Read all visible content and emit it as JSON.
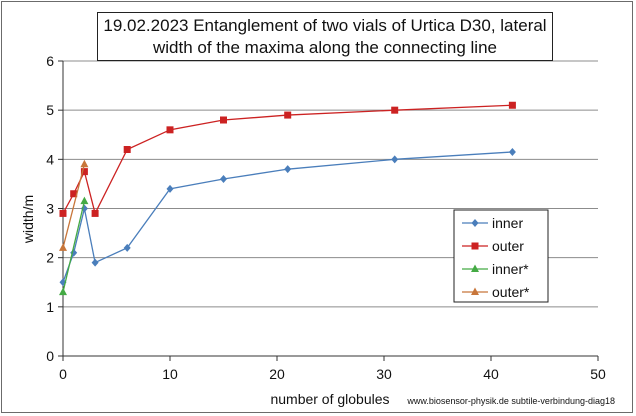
{
  "chart_data": {
    "type": "line",
    "title_lines": [
      "19.02.2023 Entanglement of two vials of Urtica D30, lateral",
      "width of the maxima along the connecting line"
    ],
    "xlabel": "number of globules",
    "ylabel": "width/m",
    "xlim": [
      0,
      50
    ],
    "ylim": [
      0,
      6
    ],
    "x_ticks": [
      "0",
      "10",
      "20",
      "30",
      "40",
      "50"
    ],
    "y_ticks": [
      "0",
      "1",
      "2",
      "3",
      "4",
      "5",
      "6"
    ],
    "grid": "horizontal",
    "legend_position": "right-middle",
    "credit": "www.biosensor-physik.de subtile-verbindung-diag18",
    "series": [
      {
        "name": "inner",
        "color": "#4a7ebb",
        "marker": "diamond",
        "x": [
          0,
          1,
          2,
          3,
          6,
          10,
          15,
          21,
          31,
          42
        ],
        "y": [
          1.5,
          2.1,
          3.0,
          1.9,
          2.2,
          3.4,
          3.6,
          3.8,
          4.0,
          4.15
        ]
      },
      {
        "name": "outer",
        "color": "#cc2222",
        "marker": "square",
        "x": [
          0,
          1,
          2,
          3,
          6,
          10,
          15,
          21,
          31,
          42
        ],
        "y": [
          2.9,
          3.3,
          3.75,
          2.9,
          4.2,
          4.6,
          4.8,
          4.9,
          5.0,
          5.1
        ]
      },
      {
        "name": "inner*",
        "color": "#44aa44",
        "marker": "triangle",
        "x": [
          0,
          2
        ],
        "y": [
          1.3,
          3.15
        ]
      },
      {
        "name": "outer*",
        "color": "#c8763a",
        "marker": "triangle",
        "x": [
          0,
          2
        ],
        "y": [
          2.2,
          3.9
        ]
      }
    ]
  }
}
